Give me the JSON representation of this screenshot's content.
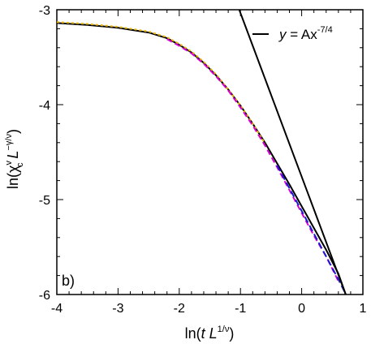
{
  "chart_data": {
    "type": "line",
    "panel_label": "b)",
    "xlabel": {
      "prefix": "ln(",
      "var": "t L",
      "sup": "1/ν",
      "suffix": ")"
    },
    "ylabel": {
      "prefix": "ln(χ",
      "sup1": "v",
      "sub1": "c",
      "mid": " L",
      "sup2": "−γ/ν",
      "suffix": ")"
    },
    "xlim": [
      -4,
      1.0
    ],
    "ylim": [
      -6.0,
      -3.0
    ],
    "xticks": [
      -4,
      -3,
      -2,
      -1,
      0,
      1
    ],
    "xtick_labels": [
      "-4",
      "-3",
      "-2",
      "-1",
      "0",
      "1"
    ],
    "yticks": [
      -6,
      -5,
      -4,
      -3
    ],
    "ytick_labels": [
      "-6",
      "-5",
      "-4",
      "-3"
    ],
    "legend": {
      "position": "top-right",
      "label": {
        "lhs": "y",
        "eq": " = Ax",
        "sup": "-7/4"
      }
    },
    "series": [
      {
        "color": "#000000",
        "dash": "",
        "x": [
          -4.0,
          -3.5,
          -3.0,
          -2.5,
          -2.2,
          -2.0,
          -1.8,
          -1.6,
          -1.4,
          -1.2,
          -1.0,
          -0.8,
          -0.6,
          -0.4,
          -0.2,
          0.0,
          0.2,
          0.4,
          0.6,
          0.72
        ],
        "y": [
          -3.14,
          -3.16,
          -3.19,
          -3.24,
          -3.3,
          -3.37,
          -3.45,
          -3.56,
          -3.69,
          -3.84,
          -4.01,
          -4.2,
          -4.4,
          -4.62,
          -4.84,
          -5.07,
          -5.3,
          -5.53,
          -5.78,
          -6.0
        ]
      },
      {
        "color": "#e8b400",
        "dash": "3,3",
        "x": [
          -4.0,
          -3.5,
          -3.0,
          -2.5,
          -2.2,
          -2.0,
          -1.8,
          -1.6,
          -1.4,
          -1.2,
          -1.0,
          -0.8,
          -0.6
        ],
        "y": [
          -3.13,
          -3.15,
          -3.18,
          -3.23,
          -3.29,
          -3.36,
          -3.44,
          -3.55,
          -3.68,
          -3.84,
          -4.01,
          -4.2,
          -4.41
        ]
      },
      {
        "color": "#d400d4",
        "dash": "7,4",
        "x": [
          -2.2,
          -2.0,
          -1.8,
          -1.6,
          -1.4,
          -1.2,
          -1.0,
          -0.8,
          -0.6,
          -0.4,
          -0.2,
          0.0,
          0.2,
          0.4,
          0.6
        ],
        "y": [
          -3.31,
          -3.38,
          -3.46,
          -3.57,
          -3.7,
          -3.85,
          -4.03,
          -4.22,
          -4.43,
          -4.66,
          -4.9,
          -5.14,
          -5.38,
          -5.6,
          -5.86
        ]
      },
      {
        "color": "#1a1acc",
        "dash": "8,4",
        "x": [
          -0.4,
          -0.2,
          0.0,
          0.2,
          0.4,
          0.6,
          0.7
        ],
        "y": [
          -4.64,
          -4.88,
          -5.12,
          -5.36,
          -5.6,
          -5.84,
          -5.97
        ]
      },
      {
        "color": "#000000",
        "dash": "",
        "x": [
          -1.02,
          0.72
        ],
        "y": [
          -3.0,
          -6.0
        ]
      }
    ]
  }
}
